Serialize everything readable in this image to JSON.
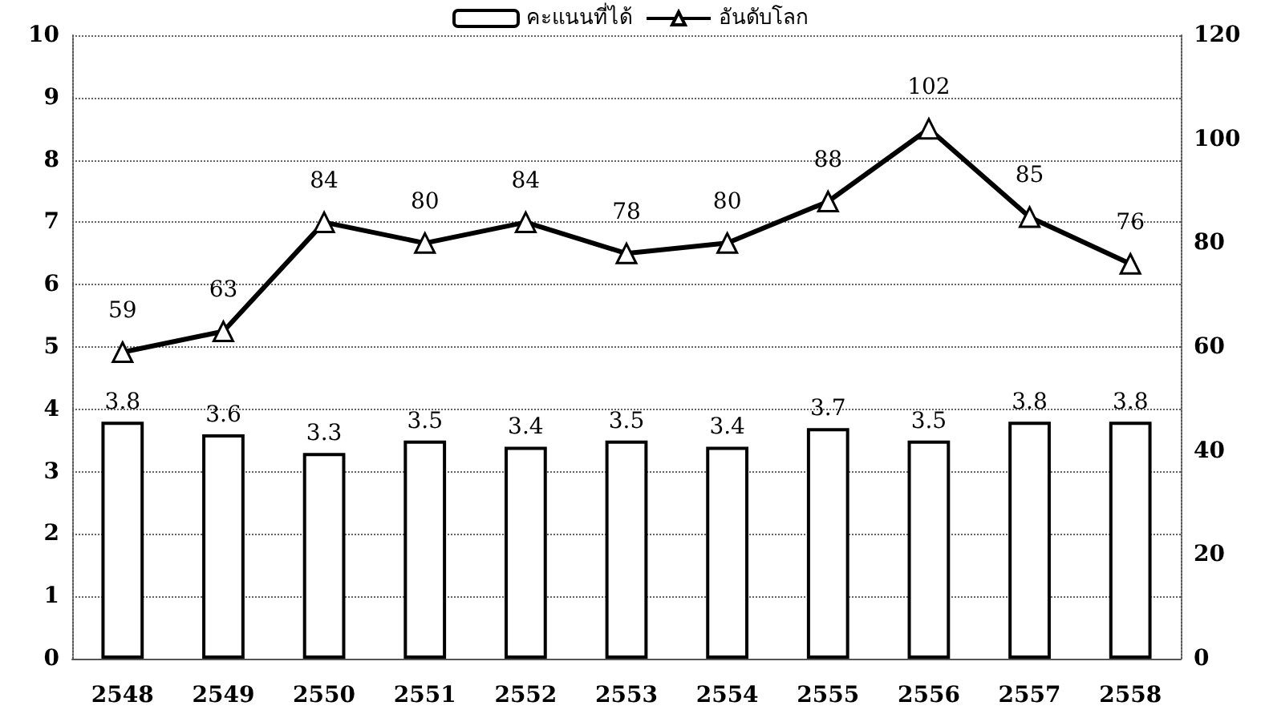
{
  "chart_data": {
    "type": "bar",
    "categories": [
      "2548",
      "2549",
      "2550",
      "2551",
      "2552",
      "2553",
      "2554",
      "2555",
      "2556",
      "2557",
      "2558"
    ],
    "series": [
      {
        "name": "คะแนนที่ได้",
        "color": "#ffffff",
        "values": [
          3.8,
          3.6,
          3.3,
          3.5,
          3.4,
          3.5,
          3.4,
          3.7,
          3.5,
          3.8,
          3.8
        ]
      },
      {
        "name": "อันดับโลก",
        "type": "line",
        "axis": "y2",
        "color": "#000000",
        "marker": "triangle",
        "values": [
          59,
          63,
          84,
          80,
          84,
          78,
          80,
          88,
          102,
          85,
          76
        ]
      }
    ],
    "ylim": [
      0,
      10
    ],
    "yticks": [
      0,
      1,
      2,
      3,
      4,
      5,
      6,
      7,
      8,
      9,
      10
    ],
    "y2lim": [
      0,
      120
    ],
    "y2ticks": [
      0,
      20,
      40,
      60,
      80,
      100,
      120
    ],
    "grid": "y",
    "legend": "top",
    "data_labels": true
  }
}
